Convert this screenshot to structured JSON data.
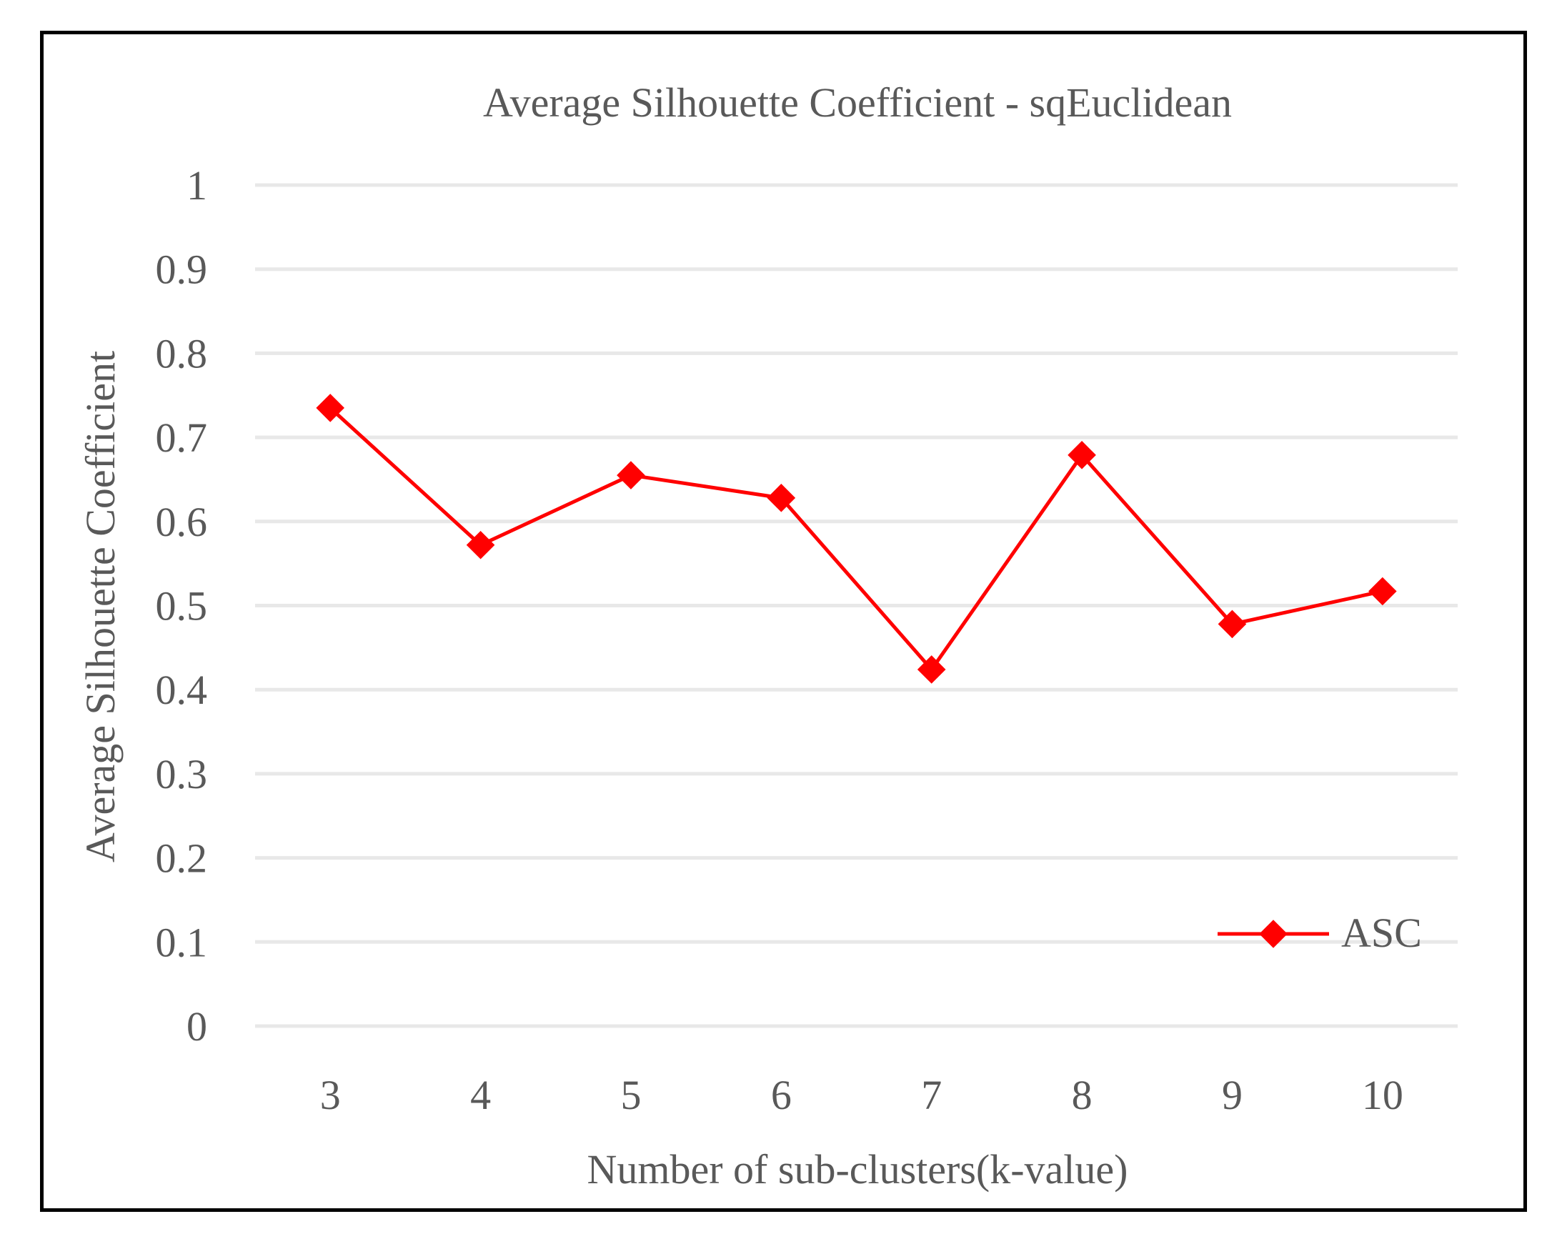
{
  "chart_data": {
    "type": "line",
    "title": "Average Silhouette Coefficient - sqEuclidean",
    "xlabel": "Number of sub-clusters(k-value)",
    "ylabel": "Average Silhouette Coefficient",
    "categories": [
      "3",
      "4",
      "5",
      "6",
      "7",
      "8",
      "9",
      "10"
    ],
    "series": [
      {
        "name": "ASC",
        "color": "#ff0000",
        "values": [
          0.735,
          0.572,
          0.655,
          0.628,
          0.424,
          0.679,
          0.478,
          0.517
        ]
      }
    ],
    "ylim": [
      0,
      1
    ],
    "yticks": [
      "0",
      "0.1",
      "0.2",
      "0.3",
      "0.4",
      "0.5",
      "0.6",
      "0.7",
      "0.8",
      "0.9",
      "1"
    ],
    "grid": true,
    "legend_position": "bottom-right"
  }
}
